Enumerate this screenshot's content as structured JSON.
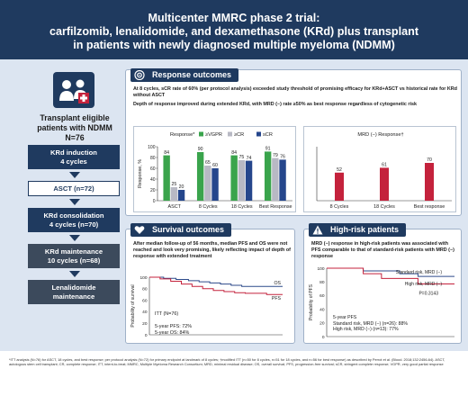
{
  "title": {
    "line1": "Multicenter MMRC phase 2 trial:",
    "line2": "carfilzomib, lenalidomide, and dexamethasone (KRd) plus transplant",
    "line3": "in patients with newly diagnosed multiple myeloma (NDMM)"
  },
  "colors": {
    "navy": "#1f3a5f",
    "vgpr": "#3aa44c",
    "cr": "#b8b9c4",
    "scr": "#25468c",
    "mrd": "#c4223c",
    "standard_risk": "#2d4a8a",
    "high_risk": "#c4223c"
  },
  "left": {
    "cohort_line1": "Transplant eligible",
    "cohort_line2": "patients with NDMM",
    "cohort_line3": "N=76",
    "steps": [
      {
        "line1": "KRd induction",
        "line2": "4 cycles"
      },
      {
        "line1": "ASCT (n=72)",
        "line2": ""
      },
      {
        "line1": "KRd consolidation",
        "line2": "4 cycles (n=70)"
      },
      {
        "line1": "KRd maintenance",
        "line2": "10 cycles (n=68)"
      },
      {
        "line1": "Lenalidomide",
        "line2": "maintenance"
      }
    ],
    "icon": "patient-group-icon"
  },
  "response": {
    "title": "Response outcomes",
    "icon": "target-icon",
    "text1": "At 8 cycles, sCR rate of 60% (per protocol analysis) exceeded study threshold of promising efficacy for KRd+ASCT vs historical rate for KRd without ASCT",
    "text2": "Depth of response improved during extended KRd, with MRD (−) rate ≥50% as best response regardless of cytogenetic risk"
  },
  "survival": {
    "title": "Survival outcomes",
    "icon": "heart-icon",
    "text": "After median follow-up of 56 months, median PFS and OS were not reached and look very promising, likely reflecting impact of depth of response with extended treatment",
    "itt": "ITT (N=76)",
    "pfs_text": "5-year PFS: 72%",
    "os_text": "5-year OS: 84%"
  },
  "highrisk": {
    "title": "High-risk patients",
    "icon": "warning-icon",
    "text": "MRD (−) response in high-risk patients was associated with PFS comparable to that of standard-risk patients with MRD (−) response",
    "pvalue": "P=0.3143",
    "summary_title": "5-year PFS",
    "summary_std": "Standard risk, MRD (−) (n=26): 88%",
    "summary_high": "High risk, MRD (−) (n=13): 77%"
  },
  "footnote": "*ITT analysis (N=76) for ASCT, 18 cycles, and best response; per protocol analysis (N=72) for primary endpoint at landmark of 8 cycles; †modified ITT (n=50 for 8 cycles, n=51 for 18 cycles, and n=56 for best response) as described by Perrot et al. (Blood. 2018;132:2456-64). ASCT, autologous stem cell transplant; CR, complete response; ITT, intent-to-treat; MMRC, Multiple Myeloma Research Consortium; MRD, minimal residual disease; OS, overall survival; PFS, progression-free survival; sCR, stringent complete response; VGPR, very good partial response",
  "chart_data": [
    {
      "type": "bar",
      "title": "Response*",
      "ylabel": "Response, %",
      "ylim": [
        0,
        100
      ],
      "yticks": [
        0,
        20,
        40,
        60,
        80,
        100
      ],
      "categories": [
        "ASCT",
        "8 Cycles",
        "18 Cycles",
        "Best Response"
      ],
      "series": [
        {
          "name": "≥VGPR",
          "color": "#3aa44c",
          "values": [
            84,
            90,
            84,
            91
          ]
        },
        {
          "name": "≥CR",
          "color": "#b8b9c4",
          "values": [
            25,
            65,
            75,
            79
          ]
        },
        {
          "name": "sCR",
          "color": "#25468c",
          "values": [
            20,
            60,
            74,
            76
          ]
        }
      ]
    },
    {
      "type": "bar",
      "title": "MRD (−) Response†",
      "ylabel": "",
      "ylim": [
        0,
        100
      ],
      "categories": [
        "8 Cycles",
        "18 Cycles",
        "Best response"
      ],
      "series": [
        {
          "name": "MRD (−) Response†",
          "color": "#c4223c",
          "values": [
            52,
            61,
            70
          ]
        }
      ]
    },
    {
      "type": "line",
      "title": "",
      "ylabel": "Probability of survival",
      "ylim": [
        0,
        100
      ],
      "yticks": [
        0,
        20,
        40,
        60,
        80,
        100
      ],
      "series": [
        {
          "name": "OS",
          "color": "#2d4a8a",
          "x": [
            0,
            8,
            15,
            22,
            28,
            34,
            40,
            46,
            52,
            58,
            66,
            75
          ],
          "y": [
            100,
            98,
            96,
            94,
            92,
            90,
            88,
            86,
            84,
            84,
            84,
            84
          ]
        },
        {
          "name": "PFS",
          "color": "#c4223c",
          "x": [
            0,
            6,
            12,
            18,
            24,
            30,
            36,
            42,
            48,
            54,
            60,
            66,
            75
          ],
          "y": [
            100,
            97,
            93,
            88,
            84,
            80,
            77,
            75,
            73,
            72,
            72,
            70,
            70
          ]
        }
      ]
    },
    {
      "type": "line",
      "title": "",
      "ylabel": "Probability of PFS",
      "ylim": [
        0,
        100
      ],
      "yticks": [
        0,
        20,
        40,
        60,
        80,
        100
      ],
      "series": [
        {
          "name": "Standard risk, MRD (−)",
          "color": "#2d4a8a",
          "x": [
            0,
            10,
            20,
            30,
            40,
            50,
            60,
            70
          ],
          "y": [
            100,
            100,
            96,
            96,
            92,
            88,
            88,
            88
          ]
        },
        {
          "name": "High risk, MRD (−)",
          "color": "#c4223c",
          "x": [
            0,
            10,
            20,
            30,
            40,
            50,
            60,
            70
          ],
          "y": [
            100,
            100,
            92,
            85,
            85,
            77,
            77,
            77
          ]
        }
      ]
    }
  ]
}
